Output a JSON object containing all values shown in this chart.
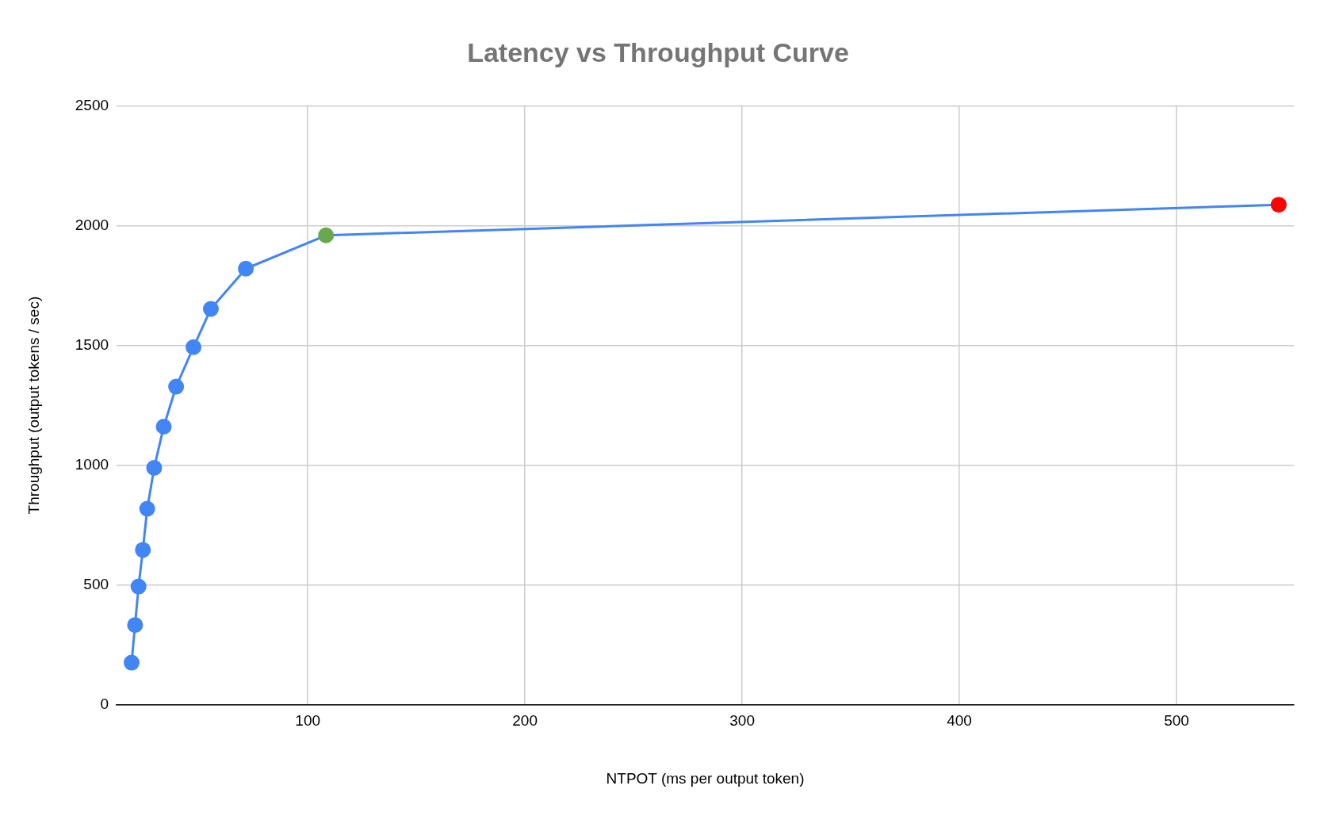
{
  "chart_data": {
    "type": "line",
    "title": "Latency vs Throughput Curve",
    "xlabel": "NTPOT (ms per output token)",
    "ylabel": "Throughput (output tokens / sec)",
    "x": [
      18.9,
      20.5,
      22.1,
      24.1,
      26.1,
      29.3,
      33.7,
      39.4,
      47.4,
      55.4,
      71.5,
      108.4,
      547
    ],
    "series": [
      {
        "color": "#4285f4",
        "values": [
          175,
          332,
          493,
          646,
          818,
          989,
          1161,
          1328,
          1493,
          1653,
          1821,
          1960,
          2088
        ],
        "colors": [
          "#4285f4",
          "#4285f4",
          "#4285f4",
          "#4285f4",
          "#4285f4",
          "#4285f4",
          "#4285f4",
          "#4285f4",
          "#4285f4",
          "#4285f4",
          "#4285f4",
          "#6aa84f",
          "#ff0000"
        ]
      }
    ],
    "xlim": [
      12,
      554
    ],
    "xticks": [
      100,
      200,
      300,
      400,
      500
    ],
    "ylim": [
      0,
      2500
    ],
    "yticks": [
      0,
      500,
      1000,
      1500,
      2000,
      2500
    ],
    "grid": true,
    "legend": false,
    "marker": "circle",
    "line_style": "solid"
  }
}
